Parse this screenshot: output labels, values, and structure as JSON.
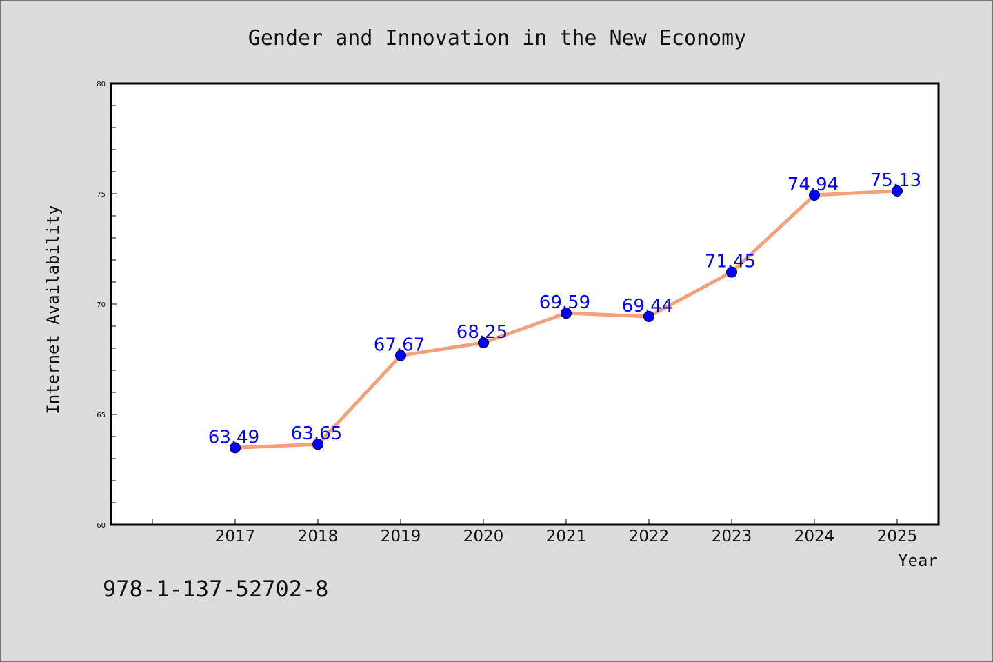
{
  "chart_data": {
    "type": "line",
    "title": "Gender and Innovation in the New Economy",
    "xlabel": "Year",
    "ylabel": "Internet Availability",
    "categories": [
      "2017",
      "2018",
      "2019",
      "2020",
      "2021",
      "2022",
      "2023",
      "2024",
      "2025"
    ],
    "series": [
      {
        "values": [
          63.49,
          63.65,
          67.67,
          68.25,
          69.59,
          69.44,
          71.45,
          74.94,
          75.13
        ],
        "data_labels": [
          "63.49",
          "63.65",
          "67.67",
          "68.25",
          "69.59",
          "69.44",
          "71.45",
          "74.94",
          "75.13"
        ],
        "line_color": "#f4a07a",
        "marker_color": "#0000ff"
      }
    ],
    "ylim": [
      60,
      80
    ],
    "yticks": [
      "60",
      "65",
      "70",
      "75",
      "80"
    ],
    "grid": false,
    "legend": "none"
  },
  "footnote": "978-1-137-52702-8",
  "colors": {
    "background": "#dcdcdc",
    "plot_area": "#ffffff",
    "line": "#f4a07a",
    "marker": "#0000ff",
    "data_label": "#0000ff"
  }
}
